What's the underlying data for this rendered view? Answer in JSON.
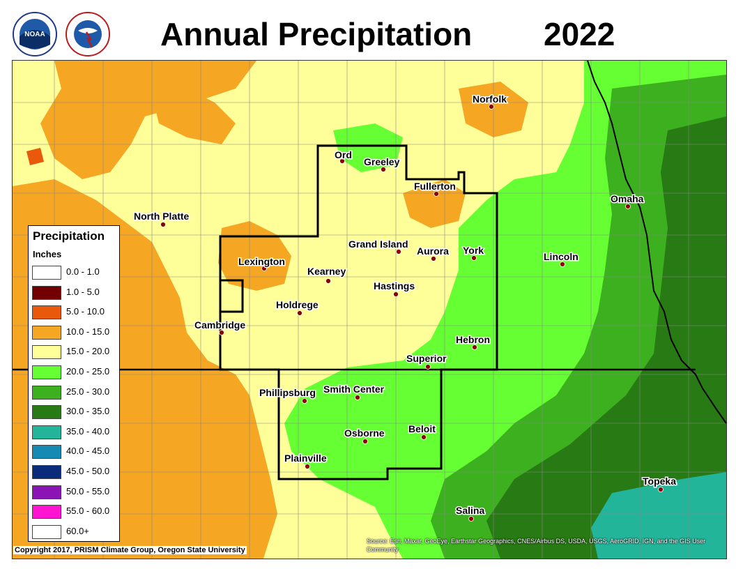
{
  "header": {
    "title": "Annual Precipitation",
    "year": "2022"
  },
  "logos": {
    "noaa": "NOAA",
    "nws": "NATIONAL WEATHER SERVICE"
  },
  "legend": {
    "title": "Precipitation",
    "units": "Inches",
    "items": [
      {
        "label": "0.0 - 1.0",
        "color": "#ffffff"
      },
      {
        "label": "1.0 - 5.0",
        "color": "#730000"
      },
      {
        "label": "5.0 - 10.0",
        "color": "#e8590c"
      },
      {
        "label": "10.0 - 15.0",
        "color": "#f5a623"
      },
      {
        "label": "15.0 - 20.0",
        "color": "#ffff99"
      },
      {
        "label": "20.0 - 25.0",
        "color": "#66ff33"
      },
      {
        "label": "25.0 - 30.0",
        "color": "#3cb01e"
      },
      {
        "label": "30.0 - 35.0",
        "color": "#287a14"
      },
      {
        "label": "35.0 - 40.0",
        "color": "#22b59a"
      },
      {
        "label": "40.0 - 45.0",
        "color": "#168ab2"
      },
      {
        "label": "45.0 - 50.0",
        "color": "#0a2a7a"
      },
      {
        "label": "50.0 - 55.0",
        "color": "#8a14b4"
      },
      {
        "label": "55.0 - 60.0",
        "color": "#ff14d2"
      },
      {
        "label": "60.0+",
        "color": "#ffffff"
      }
    ]
  },
  "cities": [
    {
      "name": "Norfolk"
    },
    {
      "name": "Ord"
    },
    {
      "name": "Greeley"
    },
    {
      "name": "Fullerton"
    },
    {
      "name": "Omaha"
    },
    {
      "name": "North Platte"
    },
    {
      "name": "Grand Island"
    },
    {
      "name": "Aurora"
    },
    {
      "name": "York"
    },
    {
      "name": "Lincoln"
    },
    {
      "name": "Lexington"
    },
    {
      "name": "Kearney"
    },
    {
      "name": "Hastings"
    },
    {
      "name": "Holdrege"
    },
    {
      "name": "Cambridge"
    },
    {
      "name": "Hebron"
    },
    {
      "name": "Superior"
    },
    {
      "name": "Phillipsburg"
    },
    {
      "name": "Smith Center"
    },
    {
      "name": "Osborne"
    },
    {
      "name": "Beloit"
    },
    {
      "name": "Plainville"
    },
    {
      "name": "Topeka"
    },
    {
      "name": "Salina"
    }
  ],
  "footer": {
    "copyright": "Copyright 2017, PRISM Climate Group, Oregon State University",
    "source": "Source: Esri, Maxar, GeoEye, Earthstar Geographics, CNES/Airbus DS, USDA, USGS, AeroGRID, IGN, and the GIS User Community"
  }
}
